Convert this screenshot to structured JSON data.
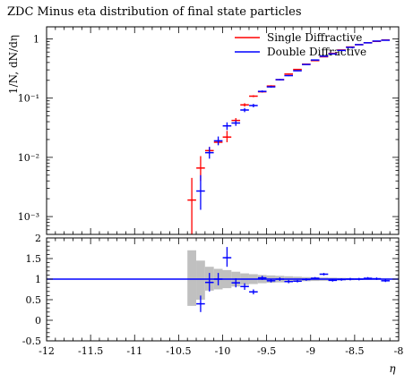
{
  "chart_data": [
    {
      "type": "scatter",
      "title": "ZDC Minus eta distribution of final state particles",
      "ylabel": "1/N, dN/dη",
      "yscale": "log",
      "ylim": [
        0.0005,
        1.6
      ],
      "xlim": [
        -12,
        -8
      ],
      "yticks": [
        {
          "value": 0.001,
          "label": "10⁻³"
        },
        {
          "value": 0.01,
          "label": "10⁻²"
        },
        {
          "value": 0.1,
          "label": "10⁻¹"
        },
        {
          "value": 1,
          "label": "1"
        }
      ],
      "legend_position": "top-right",
      "series": [
        {
          "name": "Single Diffractive",
          "color": "#ff0000",
          "points": [
            {
              "x": -10.35,
              "y": 0.0019,
              "ylo": 0.0005,
              "yhi": 0.0045
            },
            {
              "x": -10.25,
              "y": 0.0066,
              "ylo": 0.004,
              "yhi": 0.0105
            },
            {
              "x": -10.15,
              "y": 0.013,
              "ylo": 0.0115,
              "yhi": 0.015
            },
            {
              "x": -10.05,
              "y": 0.018,
              "ylo": 0.0165,
              "yhi": 0.02
            },
            {
              "x": -9.95,
              "y": 0.022,
              "ylo": 0.018,
              "yhi": 0.028
            },
            {
              "x": -9.85,
              "y": 0.042,
              "ylo": 0.039,
              "yhi": 0.046
            },
            {
              "x": -9.75,
              "y": 0.077,
              "ylo": 0.072,
              "yhi": 0.082
            },
            {
              "x": -9.65,
              "y": 0.108,
              "ylo": 0.104,
              "yhi": 0.112
            },
            {
              "x": -9.55,
              "y": 0.128,
              "ylo": 0.124,
              "yhi": 0.132
            },
            {
              "x": -9.45,
              "y": 0.16,
              "ylo": 0.155,
              "yhi": 0.165
            },
            {
              "x": -9.35,
              "y": 0.205,
              "ylo": 0.2,
              "yhi": 0.21
            },
            {
              "x": -9.25,
              "y": 0.255,
              "ylo": 0.25,
              "yhi": 0.26
            },
            {
              "x": -9.15,
              "y": 0.305,
              "ylo": 0.3,
              "yhi": 0.31
            },
            {
              "x": -9.05,
              "y": 0.375,
              "ylo": 0.37,
              "yhi": 0.38
            },
            {
              "x": -8.95,
              "y": 0.43,
              "ylo": 0.425,
              "yhi": 0.435
            },
            {
              "x": -8.85,
              "y": 0.5,
              "ylo": 0.495,
              "yhi": 0.505
            },
            {
              "x": -8.75,
              "y": 0.57,
              "ylo": 0.565,
              "yhi": 0.575
            },
            {
              "x": -8.65,
              "y": 0.65,
              "ylo": 0.645,
              "yhi": 0.655
            },
            {
              "x": -8.55,
              "y": 0.73,
              "ylo": 0.725,
              "yhi": 0.735
            },
            {
              "x": -8.45,
              "y": 0.8,
              "ylo": 0.795,
              "yhi": 0.805
            },
            {
              "x": -8.35,
              "y": 0.86,
              "ylo": 0.855,
              "yhi": 0.865
            },
            {
              "x": -8.25,
              "y": 0.91,
              "ylo": 0.905,
              "yhi": 0.915
            },
            {
              "x": -8.15,
              "y": 0.96,
              "ylo": 0.955,
              "yhi": 0.965
            }
          ]
        },
        {
          "name": "Double Diffractive",
          "color": "#0000ff",
          "points": [
            {
              "x": -10.25,
              "y": 0.0027,
              "ylo": 0.0013,
              "yhi": 0.005
            },
            {
              "x": -10.15,
              "y": 0.012,
              "ylo": 0.0095,
              "yhi": 0.015
            },
            {
              "x": -10.05,
              "y": 0.019,
              "ylo": 0.016,
              "yhi": 0.0225
            },
            {
              "x": -9.95,
              "y": 0.034,
              "ylo": 0.029,
              "yhi": 0.039
            },
            {
              "x": -9.85,
              "y": 0.038,
              "ylo": 0.034,
              "yhi": 0.042
            },
            {
              "x": -9.75,
              "y": 0.063,
              "ylo": 0.058,
              "yhi": 0.068
            },
            {
              "x": -9.65,
              "y": 0.075,
              "ylo": 0.07,
              "yhi": 0.08
            },
            {
              "x": -9.55,
              "y": 0.13,
              "ylo": 0.125,
              "yhi": 0.135
            },
            {
              "x": -9.45,
              "y": 0.155,
              "ylo": 0.15,
              "yhi": 0.16
            },
            {
              "x": -9.35,
              "y": 0.205,
              "ylo": 0.2,
              "yhi": 0.21
            },
            {
              "x": -9.25,
              "y": 0.24,
              "ylo": 0.235,
              "yhi": 0.245
            },
            {
              "x": -9.15,
              "y": 0.29,
              "ylo": 0.285,
              "yhi": 0.295
            },
            {
              "x": -9.05,
              "y": 0.37,
              "ylo": 0.365,
              "yhi": 0.375
            },
            {
              "x": -8.95,
              "y": 0.44,
              "ylo": 0.435,
              "yhi": 0.445
            },
            {
              "x": -8.85,
              "y": 0.51,
              "ylo": 0.505,
              "yhi": 0.515
            },
            {
              "x": -8.75,
              "y": 0.56,
              "ylo": 0.555,
              "yhi": 0.565
            },
            {
              "x": -8.65,
              "y": 0.64,
              "ylo": 0.635,
              "yhi": 0.645
            },
            {
              "x": -8.55,
              "y": 0.72,
              "ylo": 0.715,
              "yhi": 0.725
            },
            {
              "x": -8.45,
              "y": 0.8,
              "ylo": 0.795,
              "yhi": 0.805
            },
            {
              "x": -8.35,
              "y": 0.86,
              "ylo": 0.855,
              "yhi": 0.865
            },
            {
              "x": -8.25,
              "y": 0.92,
              "ylo": 0.915,
              "yhi": 0.925
            },
            {
              "x": -8.15,
              "y": 0.95,
              "ylo": 0.945,
              "yhi": 0.955
            }
          ]
        }
      ]
    },
    {
      "type": "scatter",
      "xlabel": "η",
      "xlim": [
        -12,
        -8
      ],
      "ylim": [
        -0.5,
        2
      ],
      "xticks": [
        {
          "value": -12,
          "label": "-12"
        },
        {
          "value": -11.5,
          "label": "-11.5"
        },
        {
          "value": -11,
          "label": "-11"
        },
        {
          "value": -10.5,
          "label": "-10.5"
        },
        {
          "value": -10,
          "label": "-10"
        },
        {
          "value": -9.5,
          "label": "-9.5"
        },
        {
          "value": -9,
          "label": "-9"
        },
        {
          "value": -8.5,
          "label": "-8.5"
        },
        {
          "value": -8,
          "label": "-8"
        }
      ],
      "yticks": [
        {
          "value": 2,
          "label": "2"
        },
        {
          "value": 1.5,
          "label": "1.5"
        },
        {
          "value": 1,
          "label": "1"
        },
        {
          "value": 0.5,
          "label": "0.5"
        },
        {
          "value": 0,
          "label": "0"
        },
        {
          "value": -0.5,
          "label": "-0.5"
        }
      ],
      "reference_line": 1,
      "reference_color": "#0000ff",
      "band_color": "#c0c0c0",
      "band": [
        {
          "x0": -10.4,
          "x1": -10.3,
          "lo": 0.35,
          "hi": 1.7
        },
        {
          "x0": -10.3,
          "x1": -10.2,
          "lo": 0.5,
          "hi": 1.45
        },
        {
          "x0": -10.2,
          "x1": -10.1,
          "lo": 0.72,
          "hi": 1.3
        },
        {
          "x0": -10.1,
          "x1": -10.0,
          "lo": 0.75,
          "hi": 1.25
        },
        {
          "x0": -10.0,
          "x1": -9.9,
          "lo": 0.78,
          "hi": 1.22
        },
        {
          "x0": -9.9,
          "x1": -9.8,
          "lo": 0.82,
          "hi": 1.18
        },
        {
          "x0": -9.8,
          "x1": -9.7,
          "lo": 0.86,
          "hi": 1.14
        },
        {
          "x0": -9.7,
          "x1": -9.6,
          "lo": 0.88,
          "hi": 1.12
        },
        {
          "x0": -9.6,
          "x1": -9.5,
          "lo": 0.9,
          "hi": 1.1
        },
        {
          "x0": -9.5,
          "x1": -9.4,
          "lo": 0.91,
          "hi": 1.09
        },
        {
          "x0": -9.4,
          "x1": -9.3,
          "lo": 0.92,
          "hi": 1.08
        },
        {
          "x0": -9.3,
          "x1": -9.2,
          "lo": 0.93,
          "hi": 1.07
        },
        {
          "x0": -9.2,
          "x1": -9.1,
          "lo": 0.94,
          "hi": 1.06
        },
        {
          "x0": -9.1,
          "x1": -9.0,
          "lo": 0.95,
          "hi": 1.05
        },
        {
          "x0": -9.0,
          "x1": -8.9,
          "lo": 0.955,
          "hi": 1.045
        },
        {
          "x0": -8.9,
          "x1": -8.8,
          "lo": 0.96,
          "hi": 1.04
        },
        {
          "x0": -8.8,
          "x1": -8.7,
          "lo": 0.965,
          "hi": 1.035
        },
        {
          "x0": -8.7,
          "x1": -8.6,
          "lo": 0.97,
          "hi": 1.03
        },
        {
          "x0": -8.6,
          "x1": -8.5,
          "lo": 0.975,
          "hi": 1.025
        },
        {
          "x0": -8.5,
          "x1": -8.4,
          "lo": 0.98,
          "hi": 1.02
        },
        {
          "x0": -8.4,
          "x1": -8.3,
          "lo": 0.98,
          "hi": 1.02
        },
        {
          "x0": -8.3,
          "x1": -8.2,
          "lo": 0.985,
          "hi": 1.015
        },
        {
          "x0": -8.2,
          "x1": -8.1,
          "lo": 0.985,
          "hi": 1.015
        }
      ],
      "series": [
        {
          "name": "Double Diffractive",
          "color": "#0000ff",
          "points": [
            {
              "x": -10.25,
              "y": 0.4,
              "ylo": 0.2,
              "yhi": 0.6
            },
            {
              "x": -10.15,
              "y": 0.92,
              "ylo": 0.7,
              "yhi": 1.15
            },
            {
              "x": -10.05,
              "y": 1.0,
              "ylo": 0.85,
              "yhi": 1.15
            },
            {
              "x": -9.95,
              "y": 1.52,
              "ylo": 1.3,
              "yhi": 1.78
            },
            {
              "x": -9.85,
              "y": 0.91,
              "ylo": 0.8,
              "yhi": 1.02
            },
            {
              "x": -9.75,
              "y": 0.82,
              "ylo": 0.74,
              "yhi": 0.9
            },
            {
              "x": -9.65,
              "y": 0.69,
              "ylo": 0.63,
              "yhi": 0.75
            },
            {
              "x": -9.55,
              "y": 1.03,
              "ylo": 0.98,
              "yhi": 1.08
            },
            {
              "x": -9.45,
              "y": 0.96,
              "ylo": 0.92,
              "yhi": 1.0
            },
            {
              "x": -9.35,
              "y": 1.0,
              "ylo": 0.96,
              "yhi": 1.04
            },
            {
              "x": -9.25,
              "y": 0.94,
              "ylo": 0.9,
              "yhi": 0.98
            },
            {
              "x": -9.15,
              "y": 0.95,
              "ylo": 0.92,
              "yhi": 0.98
            },
            {
              "x": -9.05,
              "y": 0.99,
              "ylo": 0.96,
              "yhi": 1.02
            },
            {
              "x": -8.95,
              "y": 1.02,
              "ylo": 0.99,
              "yhi": 1.05
            },
            {
              "x": -8.85,
              "y": 1.12,
              "ylo": 1.09,
              "yhi": 1.15
            },
            {
              "x": -8.75,
              "y": 0.97,
              "ylo": 0.94,
              "yhi": 1.0
            },
            {
              "x": -8.65,
              "y": 0.99,
              "ylo": 0.96,
              "yhi": 1.02
            },
            {
              "x": -8.55,
              "y": 1.0,
              "ylo": 0.97,
              "yhi": 1.03
            },
            {
              "x": -8.45,
              "y": 1.0,
              "ylo": 0.97,
              "yhi": 1.03
            },
            {
              "x": -8.35,
              "y": 1.02,
              "ylo": 0.99,
              "yhi": 1.05
            },
            {
              "x": -8.25,
              "y": 1.01,
              "ylo": 0.98,
              "yhi": 1.04
            },
            {
              "x": -8.15,
              "y": 0.96,
              "ylo": 0.93,
              "yhi": 0.99
            }
          ]
        }
      ]
    }
  ]
}
